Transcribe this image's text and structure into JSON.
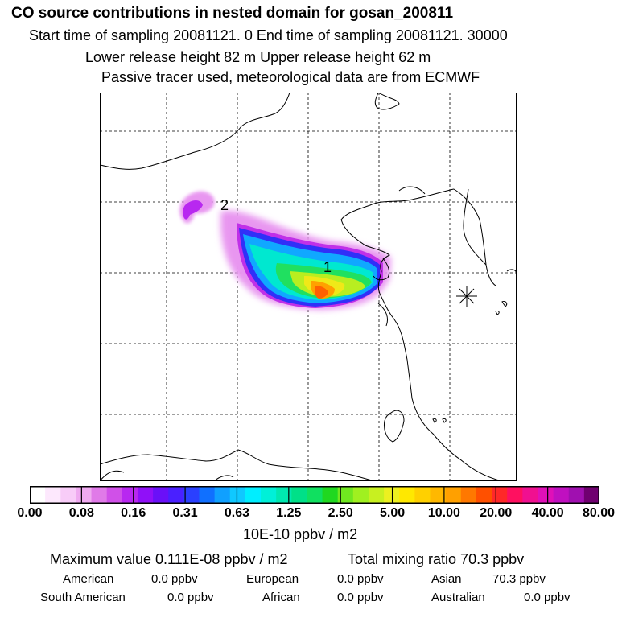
{
  "header": {
    "title": "CO  source contributions in nested domain for gosan_200811",
    "sampling": "Start time of sampling 20081121.     0     End time of sampling 20081121. 30000",
    "release": "Lower release height   82 m          Upper release height   62 m",
    "tracer": "Passive tracer used, meteorological data are from ECMWF"
  },
  "map": {
    "markers": [
      {
        "label": "1"
      },
      {
        "label": "2"
      }
    ],
    "receptor": "station-star-icon"
  },
  "colorbar": {
    "ticks": [
      "0.00",
      "0.08",
      "0.16",
      "0.31",
      "0.63",
      "1.25",
      "2.50",
      "5.00",
      "10.00",
      "20.00",
      "40.00",
      "80.00"
    ],
    "units": "10E-10 ppbv / m2",
    "colors": [
      "#ffffff",
      "#fde8fd",
      "#f8ccf8",
      "#efaaf0",
      "#e07ae8",
      "#d050e8",
      "#b828f0",
      "#9010f8",
      "#6a10f8",
      "#4a20ff",
      "#2a40ff",
      "#1070ff",
      "#10a0ff",
      "#10c8ff",
      "#00eeff",
      "#00f0d8",
      "#00e8b0",
      "#00e088",
      "#10e060",
      "#20d820",
      "#70e820",
      "#a0f020",
      "#c8f020",
      "#ecf020",
      "#ffe800",
      "#ffd000",
      "#ffb800",
      "#ffa000",
      "#ff7800",
      "#ff5000",
      "#ff2828",
      "#ff1060",
      "#f01090",
      "#e010b8",
      "#c010c0",
      "#a010b0",
      "#700070"
    ]
  },
  "summary": {
    "max_value": "Maximum value  0.111E-08 ppbv / m2",
    "total": "Total mixing ratio       70.3 ppbv",
    "regions": [
      {
        "name": "American",
        "value": "0.0 ppbv"
      },
      {
        "name": "European",
        "value": "0.0 ppbv"
      },
      {
        "name": "Asian",
        "value": "70.3 ppbv"
      },
      {
        "name": "South American",
        "value": "0.0 ppbv"
      },
      {
        "name": "African",
        "value": "0.0 ppbv"
      },
      {
        "name": "Australian",
        "value": "0.0 ppbv"
      }
    ]
  }
}
